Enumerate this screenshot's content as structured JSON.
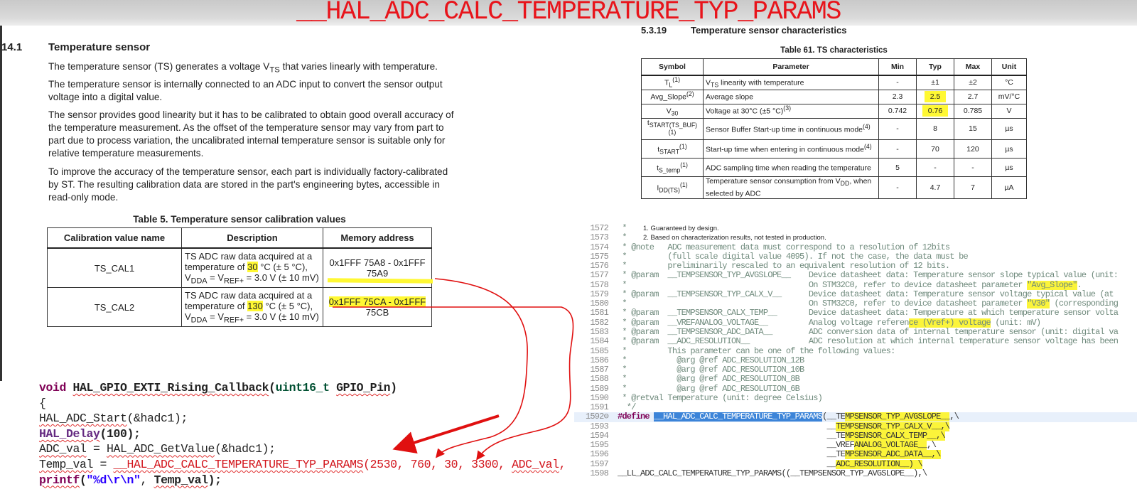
{
  "title": "__HAL_ADC_CALC_TEMPERATURE_TYP_PARAMS",
  "ref_manual": {
    "section_number": "14.1",
    "section_title": "Temperature sensor",
    "paragraphs": [
      [
        "The temperature sensor (TS) generates a voltage V",
        "TS",
        " that varies linearly with temperature."
      ],
      [
        "The temperature sensor is internally connected to an ADC input to convert the sensor output voltage into a digital value."
      ],
      [
        "The sensor provides good linearity but it has to be calibrated to obtain good overall accuracy of the temperature measurement. As the offset of the temperature sensor may vary from part to part due to process variation, the uncalibrated internal temperature sensor is suitable only for relative temperature measurements."
      ],
      [
        "To improve the accuracy of the temperature sensor, each part is individually factory-calibrated by ST. The resulting calibration data are stored in the part's engineering bytes, accessible in read-only mode."
      ]
    ],
    "table": {
      "title": "Table 5. Temperature sensor calibration values",
      "headers": [
        "Calibration value name",
        "Description",
        "Memory address"
      ],
      "rows": [
        {
          "name": "TS_CAL1",
          "desc_a": "TS ADC raw data acquired at a temperature of ",
          "temp": "30",
          "desc_b": " °C (± 5 °C),",
          "vdda": "V",
          "vdda_sub": "DDA",
          "eq": " = V",
          "vref_sub": "REF+",
          "tail": " = 3.0 V (± 10 mV)",
          "address": "0x1FFF 75A8 - 0x1FFF 75A9"
        },
        {
          "name": "TS_CAL2",
          "desc_a": "TS ADC raw data acquired at a temperature of ",
          "temp": "130",
          "desc_b": " °C (± 5 °C),",
          "vdda": "V",
          "vdda_sub": "DDA",
          "eq": " = V",
          "vref_sub": "REF+",
          "tail": " = 3.0 V (± 10 mV)",
          "address_hl": "0x1FFF 75CA - 0x1FFF",
          "address_rest": " 75CB"
        }
      ]
    }
  },
  "datasheet": {
    "section_number": "5.3.19",
    "section_title": "Temperature sensor characteristics",
    "table": {
      "title": "Table 61. TS characteristics",
      "headers": [
        "Symbol",
        "Parameter",
        "Min",
        "Typ",
        "Max",
        "Unit"
      ],
      "rows": [
        {
          "sym": "T",
          "sub": "L",
          "sup": "(1)",
          "param": "V",
          "psub": "TS",
          "param_rest": " linearity with temperature",
          "psup": "",
          "min": "-",
          "typ": "±1",
          "max": "±2",
          "unit": "°C"
        },
        {
          "sym": "Avg_Slope",
          "sub": "",
          "sup": "(2)",
          "param": "Average slope",
          "psub": "",
          "param_rest": "",
          "psup": "",
          "min": "2.3",
          "typ": "2.5",
          "typ_hl": true,
          "max": "2.7",
          "unit": "mV/°C"
        },
        {
          "sym": "V",
          "sub": "30",
          "sup": "",
          "param": "Voltage at 30°C (±5 °C)",
          "psub": "",
          "param_rest": "",
          "psup": "(3)",
          "min": "0.742",
          "typ": "0.76",
          "typ_hl": true,
          "max": "0.785",
          "unit": "V"
        },
        {
          "sym": "t",
          "sub": "START(TS_BUF)",
          "sup": "(1)",
          "param": "Sensor Buffer Start-up time in continuous mode",
          "psub": "",
          "param_rest": "",
          "psup": "(4)",
          "min": "-",
          "typ": "8",
          "max": "15",
          "unit": "µs"
        },
        {
          "sym": "t",
          "sub": "START",
          "sup": "(1)",
          "param": "Start-up time when entering in continuous mode",
          "psub": "",
          "param_rest": "",
          "psup": "(4)",
          "min": "-",
          "typ": "70",
          "max": "120",
          "unit": "µs"
        },
        {
          "sym": "t",
          "sub": "S_temp",
          "sup": "(1)",
          "param": "ADC sampling time when reading the temperature",
          "psub": "",
          "param_rest": "",
          "psup": "",
          "min": "5",
          "typ": "-",
          "max": "-",
          "unit": "µs"
        },
        {
          "sym": "I",
          "sub": "DD(TS)",
          "sup": "(1)",
          "param": "Temperature sensor consumption from V",
          "psub": "DD",
          "param_rest": ", when selected by ADC",
          "psup": "",
          "min": "-",
          "typ": "4.7",
          "max": "7",
          "unit": "µA"
        }
      ],
      "footnotes": [
        "1.  Guaranteed by design.",
        "2.  Based on characterization results, not tested in production."
      ]
    }
  },
  "library_code": {
    "lines": [
      {
        "n": "1572",
        "segs": [
          {
            "t": " *"
          }
        ]
      },
      {
        "n": "1573",
        "segs": [
          {
            "t": " *"
          }
        ]
      },
      {
        "n": "1574",
        "segs": [
          {
            "t": " * @note   ADC measurement data must correspond to a resolution of 12bits"
          }
        ]
      },
      {
        "n": "1575",
        "segs": [
          {
            "t": " *         (full scale digital value 4095). If not the case, the data must be"
          }
        ]
      },
      {
        "n": "1576",
        "segs": [
          {
            "t": " *         preliminarily rescaled to an equivalent resolution of 12 bits."
          }
        ]
      },
      {
        "n": "1577",
        "segs": [
          {
            "t": " * @param  __TEMPSENSOR_TYP_AVGSLOPE__    Device datasheet data: Temperature sensor slope typical value (unit:"
          }
        ]
      },
      {
        "n": "1578",
        "segs": [
          {
            "t": " *                                        On STM32C0, refer to device datasheet parameter "
          },
          {
            "t": "\"Avg_Slope\"",
            "hl": true
          },
          {
            "t": "."
          }
        ]
      },
      {
        "n": "1579",
        "segs": [
          {
            "t": " * @param  __TEMPSENSOR_TYP_CALX_V__      Device datasheet data: Temperature sensor voltage typical value (at"
          }
        ]
      },
      {
        "n": "1580",
        "segs": [
          {
            "t": " *                                        On STM32C0, refer to device datasheet parameter "
          },
          {
            "t": "\"V30\"",
            "hl": true
          },
          {
            "t": " (corresponding"
          }
        ]
      },
      {
        "n": "1581",
        "segs": [
          {
            "t": " * @param  __TEMPSENSOR_CALX_TEMP__       Device datasheet data: Temperature at which temperature sensor volta"
          }
        ]
      },
      {
        "n": "1582",
        "segs": [
          {
            "t": " * @param  __VREFANALOG_VOLTAGE__         Analog voltage referen"
          },
          {
            "t": "ce (Vref+) voltage",
            "hl": true
          },
          {
            "t": " (unit: mV)"
          }
        ]
      },
      {
        "n": "1583",
        "segs": [
          {
            "t": " * @param  __TEMPSENSOR_ADC_DATA__        ADC conversion data of internal temperature sensor (unit: digital va"
          }
        ]
      },
      {
        "n": "1584",
        "segs": [
          {
            "t": " * @param  __ADC_RESOLUTION__             ADC resolution at which internal temperature sensor voltage has been"
          }
        ]
      },
      {
        "n": "1585",
        "segs": [
          {
            "t": " *         This parameter can be one of the following values:"
          }
        ]
      },
      {
        "n": "1586",
        "segs": [
          {
            "t": " *           @arg @ref ADC_RESOLUTION_12B"
          }
        ]
      },
      {
        "n": "1587",
        "segs": [
          {
            "t": " *           @arg @ref ADC_RESOLUTION_10B"
          }
        ]
      },
      {
        "n": "1588",
        "segs": [
          {
            "t": " *           @arg @ref ADC_RESOLUTION_8B"
          }
        ]
      },
      {
        "n": "1589",
        "segs": [
          {
            "t": " *           @arg @ref ADC_RESOLUTION_6B"
          }
        ]
      },
      {
        "n": "1590",
        "segs": [
          {
            "t": " * @retval Temperature (unit: degree Celsius)"
          }
        ]
      },
      {
        "n": "1591",
        "segs": [
          {
            "t": "  */"
          }
        ]
      },
      {
        "n": "1592⊖",
        "code": true,
        "current": true,
        "segs": [
          {
            "t": "#define",
            "kw": true
          },
          {
            "t": " "
          },
          {
            "t": "__HAL_ADC_CALC_TEMPERATURE_TYP_PARAMS",
            "sel": true
          },
          {
            "t": "(__TE"
          },
          {
            "t": "MPSENSOR_TYP_AVGSLOPE__",
            "hl": true
          },
          {
            "t": ",\\"
          }
        ]
      },
      {
        "n": "1593",
        "code": true,
        "segs": [
          {
            "t": "                                              __"
          },
          {
            "t": "TEMPSENSOR_TYP_CALX_V__,\\",
            "hl": true
          }
        ]
      },
      {
        "n": "1594",
        "code": true,
        "segs": [
          {
            "t": "                                              __TE"
          },
          {
            "t": "MPSENSOR_CALX_TEMP__,\\",
            "hl": true
          }
        ]
      },
      {
        "n": "1595",
        "code": true,
        "segs": [
          {
            "t": "                                              __VREF"
          },
          {
            "t": "ANALOG_VOLTAGE__",
            "hl": true
          },
          {
            "t": ",\\"
          }
        ]
      },
      {
        "n": "1596",
        "code": true,
        "segs": [
          {
            "t": "                                              __TE"
          },
          {
            "t": "MPSENSOR_ADC_DATA__,\\",
            "hl": true
          }
        ]
      },
      {
        "n": "1597",
        "code": true,
        "segs": [
          {
            "t": "                                              __"
          },
          {
            "t": "ADC_RESOLUTION__) \\",
            "hl": true
          }
        ]
      },
      {
        "n": "1598",
        "code": true,
        "segs": [
          {
            "t": "__LL_ADC_CALC_TEMPERATURE_TYP_PARAMS((__TEMPSENSOR_TYP_AVGSLOPE__),\\"
          }
        ]
      }
    ]
  },
  "user_code": {
    "lines": [
      [
        {
          "t": "void",
          "c": "vk"
        },
        {
          "t": " "
        },
        {
          "t": "HAL_GPIO_EXTI_Rising_Callback",
          "c": "b sq"
        },
        {
          "t": "(",
          "c": "b"
        },
        {
          "t": "uint16_t",
          "c": "ty"
        },
        {
          "t": " "
        },
        {
          "t": "GPIO_Pin",
          "c": "b sq"
        },
        {
          "t": ")",
          "c": "b"
        }
      ],
      [
        {
          "t": "{"
        }
      ],
      [
        {
          "t": "HAL_ADC_Start",
          "c": "sq"
        },
        {
          "t": "(&hadc1);"
        }
      ],
      [
        {
          "t": "HAL_Delay",
          "c": "fn2 sq"
        },
        {
          "t": "(",
          "c": "b"
        },
        {
          "t": "100",
          "c": "b"
        },
        {
          "t": ");",
          "c": "b"
        }
      ],
      [
        {
          "t": "ADC_val",
          "c": "sq"
        },
        {
          "t": " = "
        },
        {
          "t": "HAL_ADC_GetValue",
          "c": "sq"
        },
        {
          "t": "(&hadc1);"
        }
      ],
      [
        {
          "t": "Temp_val",
          "c": "sq"
        },
        {
          "t": " = "
        },
        {
          "t": "__HAL_ADC_CALC_TEMPERATURE_TYP_PARAMS",
          "c": "mac sq"
        },
        {
          "t": "(2530, 760, 30, 3300, ",
          "c": "mac"
        },
        {
          "t": "ADC_val",
          "c": "mac sq"
        },
        {
          "t": ",",
          "c": "mac"
        }
      ],
      [
        {
          "t": "printf",
          "c": "vk sq"
        },
        {
          "t": "(",
          "c": "b"
        },
        {
          "t": "\"%d\\r\\n\"",
          "c": "str"
        },
        {
          "t": ", "
        },
        {
          "t": "Temp_val",
          "c": "b sq"
        },
        {
          "t": ");",
          "c": "b"
        }
      ]
    ]
  },
  "colors": {
    "title_red": "#e8141b",
    "highlight_yellow": "#fff833",
    "annotation_arrow": "#e01010",
    "selection_blue": "#3c84d8"
  }
}
